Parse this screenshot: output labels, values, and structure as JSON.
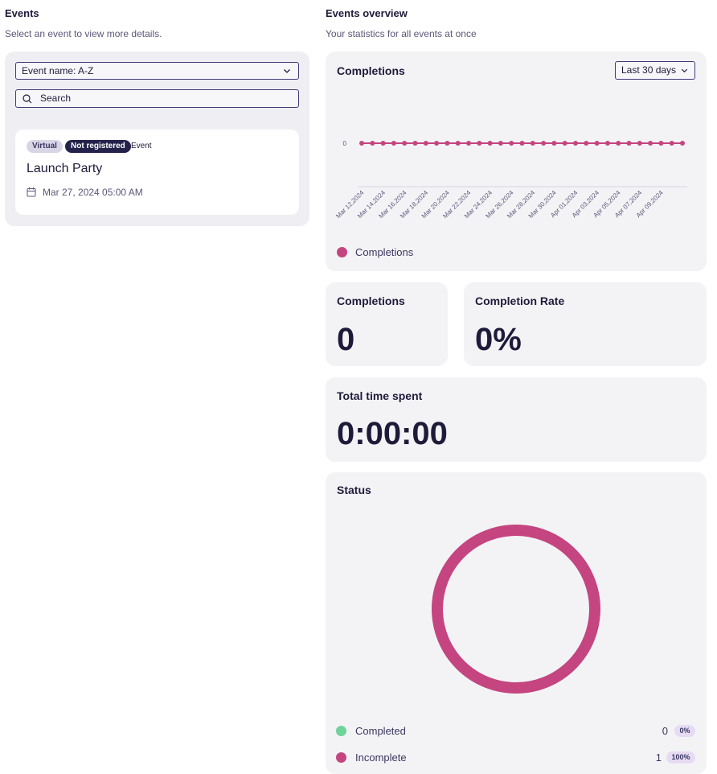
{
  "left": {
    "title": "Events",
    "subtitle": "Select an event to view more details.",
    "sort_select": "Event name: A-Z",
    "search_placeholder": "Search",
    "event": {
      "badge_virtual": "Virtual",
      "badge_status": "Not registered",
      "badge_type": "Event",
      "name": "Launch Party",
      "date": "Mar 27, 2024 05:00 AM"
    }
  },
  "right": {
    "title": "Events overview",
    "subtitle": "Your statistics for all events at once",
    "completions_card": {
      "title": "Completions",
      "range": "Last 30 days",
      "legend": "Completions",
      "y_tick": "0"
    },
    "completions_stat": {
      "title": "Completions",
      "value": "0"
    },
    "rate_stat": {
      "title": "Completion Rate",
      "value": "0%"
    },
    "time_stat": {
      "title": "Total time spent",
      "value": "0:00:00"
    },
    "status_card": {
      "title": "Status",
      "completed_label": "Completed",
      "completed_count": "0",
      "completed_pct": "0%",
      "incomplete_label": "Incomplete",
      "incomplete_count": "1",
      "incomplete_pct": "100%"
    }
  },
  "colors": {
    "series": "#c4457f",
    "completed": "#6fd39a",
    "accent_dark": "#24214a"
  },
  "chart_data": [
    {
      "type": "line",
      "title": "Completions",
      "x": [
        "Mar 12,2024",
        "Mar 13,2024",
        "Mar 14,2024",
        "Mar 15,2024",
        "Mar 16,2024",
        "Mar 17,2024",
        "Mar 18,2024",
        "Mar 19,2024",
        "Mar 20,2024",
        "Mar 21,2024",
        "Mar 22,2024",
        "Mar 23,2024",
        "Mar 24,2024",
        "Mar 25,2024",
        "Mar 26,2024",
        "Mar 27,2024",
        "Mar 28,2024",
        "Mar 29,2024",
        "Mar 30,2024",
        "Mar 31,2024",
        "Apr 01,2024",
        "Apr 02,2024",
        "Apr 03,2024",
        "Apr 04,2024",
        "Apr 05,2024",
        "Apr 06,2024",
        "Apr 07,2024",
        "Apr 08,2024",
        "Apr 09,2024",
        "Apr 10,2024",
        "Apr 11,2024"
      ],
      "x_tick_labels": [
        "Mar 12,2024",
        "Mar 14,2024",
        "Mar 16,2024",
        "Mar 18,2024",
        "Mar 20,2024",
        "Mar 22,2024",
        "Mar 24,2024",
        "Mar 26,2024",
        "Mar 28,2024",
        "Mar 30,2024",
        "Apr 01,2024",
        "Apr 03,2024",
        "Apr 05,2024",
        "Apr 07,2024",
        "Apr 09,2024"
      ],
      "series": [
        {
          "name": "Completions",
          "values": [
            0,
            0,
            0,
            0,
            0,
            0,
            0,
            0,
            0,
            0,
            0,
            0,
            0,
            0,
            0,
            0,
            0,
            0,
            0,
            0,
            0,
            0,
            0,
            0,
            0,
            0,
            0,
            0,
            0,
            0,
            0
          ]
        }
      ],
      "y_ticks": [
        "0"
      ],
      "legend": "bottom-left",
      "grid": false
    },
    {
      "type": "pie",
      "title": "Status",
      "categories": [
        "Completed",
        "Incomplete"
      ],
      "values": [
        0,
        1
      ],
      "percent": [
        "0%",
        "100%"
      ]
    }
  ]
}
